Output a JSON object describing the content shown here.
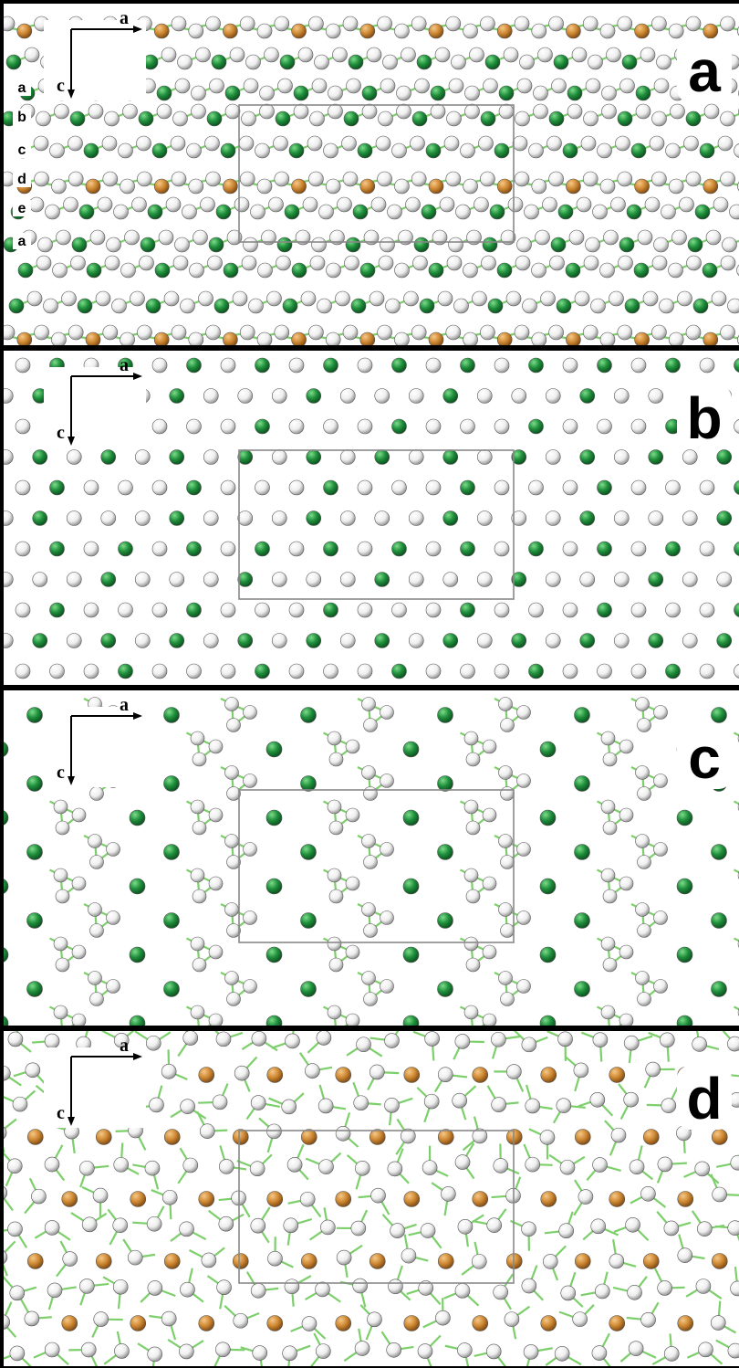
{
  "panels": [
    {
      "label": "a",
      "axis_a": "a",
      "axis_c": "c",
      "layers": [
        "a",
        "b",
        "c",
        "d",
        "e",
        "a"
      ]
    },
    {
      "label": "b",
      "axis_a": "a",
      "axis_c": "c"
    },
    {
      "label": "c",
      "axis_a": "a",
      "axis_c": "c"
    },
    {
      "label": "d",
      "axis_a": "a",
      "axis_c": "c"
    }
  ]
}
